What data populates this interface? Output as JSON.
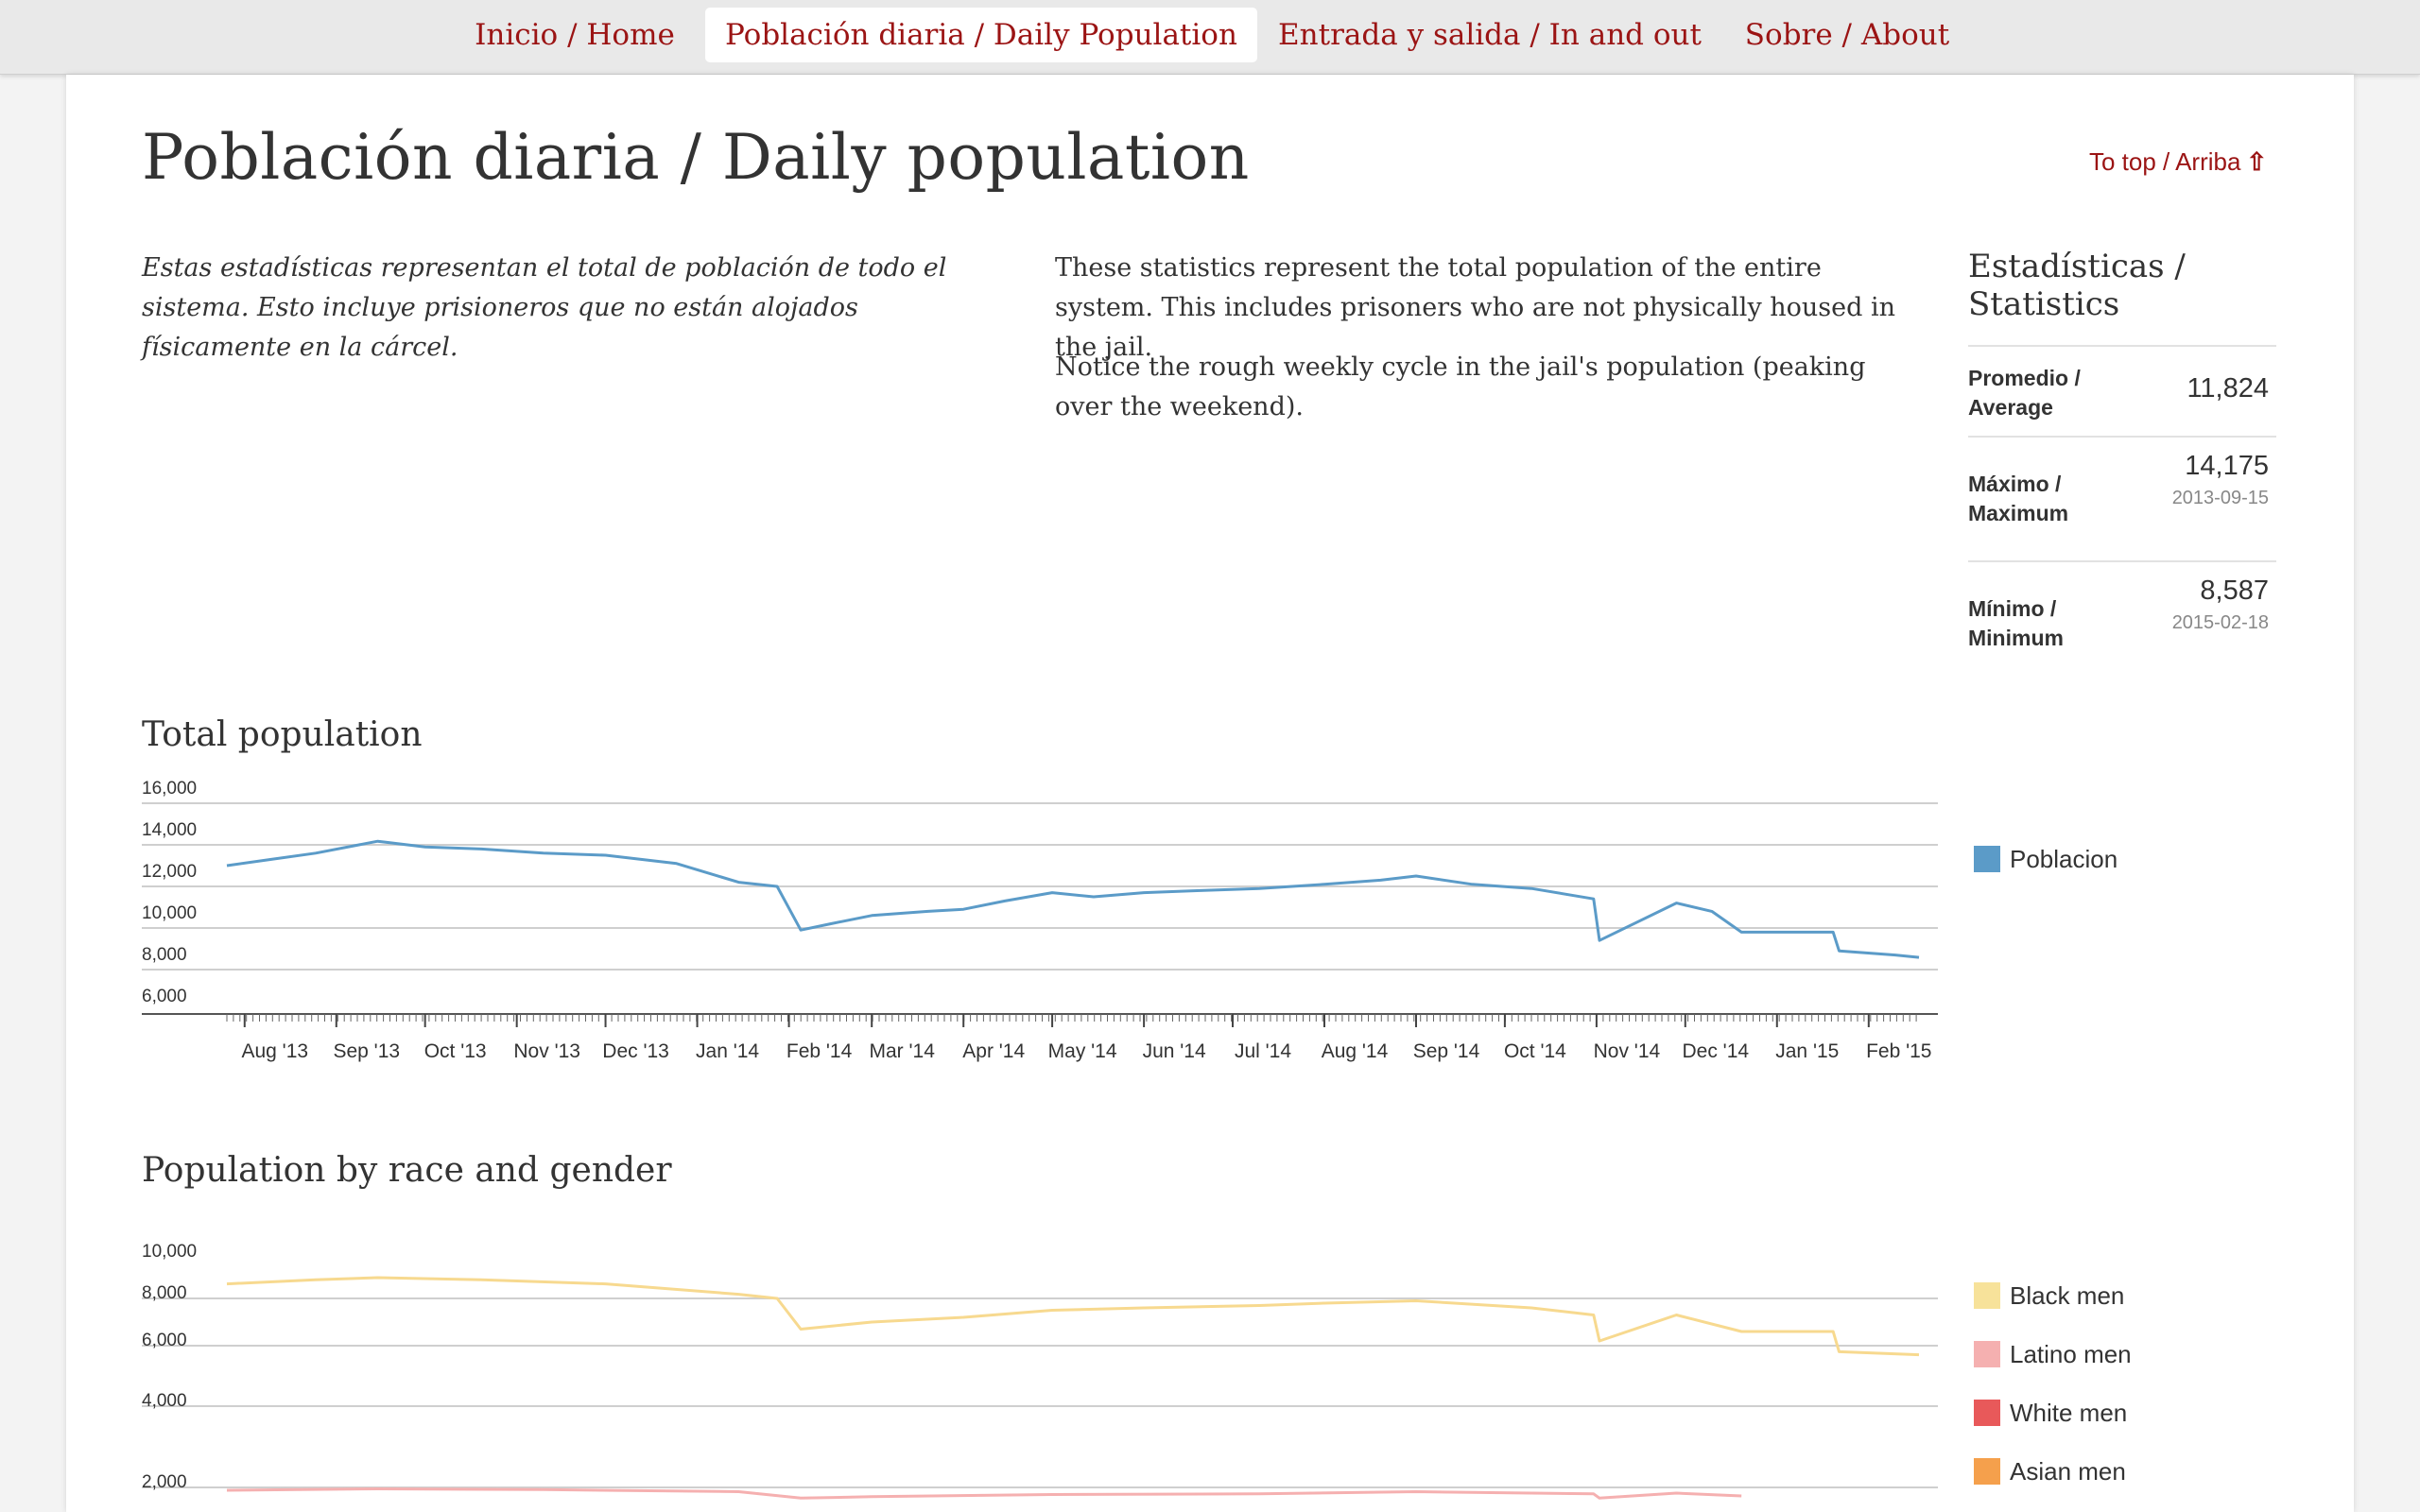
{
  "nav": {
    "items": [
      {
        "label": "Inicio / Home",
        "active": false
      },
      {
        "label": "Población diaria / Daily Population",
        "active": true
      },
      {
        "label": "Entrada y salida / In and out",
        "active": false
      },
      {
        "label": "Sobre / About",
        "active": false
      }
    ]
  },
  "page": {
    "title": "Población diaria / Daily population",
    "to_top": "To top / Arriba",
    "intro_es": "Estas estadísticas representan el total de población de todo el sistema. Esto incluye prisioneros que no están alojados físicamente en la cárcel.",
    "intro_en_1": "These statistics represent the total population of the entire system. This includes prisoners who are not physically housed in the jail.",
    "intro_en_2": "Notice the rough weekly cycle in the jail's population (peaking over the weekend)."
  },
  "stats": {
    "title": "Estadísticas / Statistics",
    "average": {
      "label": "Promedio / Average",
      "value": "11,824"
    },
    "maximum": {
      "label": "Máximo / Maximum",
      "value": "14,175",
      "date": "2013-09-15"
    },
    "minimum": {
      "label": "Mínimo / Minimum",
      "value": "8,587",
      "date": "2015-02-18"
    }
  },
  "sections": {
    "total_title": "Total population",
    "race_title": "Population by race and gender"
  },
  "colors": {
    "accent": "#9b1414",
    "poblacion": "#5b9bc8",
    "black_men": "#f7d98f",
    "latino_men": "#f5b0b0",
    "white_men": "#e8595a",
    "asian_men": "#f5a04c"
  },
  "chart_data": [
    {
      "type": "line",
      "title": "Total population",
      "x_labels": [
        "Aug '13",
        "Sep '13",
        "Oct '13",
        "Nov '13",
        "Dec '13",
        "Jan '14",
        "Feb '14",
        "Mar '14",
        "Apr '14",
        "May '14",
        "Jun '14",
        "Jul '14",
        "Aug '14",
        "Sep '14",
        "Oct '14",
        "Nov '14",
        "Dec '14",
        "Jan '15",
        "Feb '15"
      ],
      "y_ticks": [
        "16,000",
        "14,000",
        "12,000",
        "10,000",
        "8,000",
        "6,000"
      ],
      "ylim": [
        6000,
        16000
      ],
      "legend_position": "right",
      "series": [
        {
          "name": "Poblacion",
          "x": [
            "2013-07-26",
            "2013-08-10",
            "2013-08-25",
            "2013-09-15",
            "2013-10-01",
            "2013-10-20",
            "2013-11-10",
            "2013-12-01",
            "2013-12-25",
            "2014-01-15",
            "2014-01-28",
            "2014-02-05",
            "2014-02-15",
            "2014-03-01",
            "2014-03-20",
            "2014-04-01",
            "2014-04-15",
            "2014-05-01",
            "2014-05-15",
            "2014-06-01",
            "2014-06-20",
            "2014-07-10",
            "2014-08-01",
            "2014-08-20",
            "2014-09-01",
            "2014-09-20",
            "2014-10-10",
            "2014-10-31",
            "2014-11-02",
            "2014-11-28",
            "2014-12-10",
            "2014-12-20",
            "2015-01-20",
            "2015-01-22",
            "2015-02-10",
            "2015-02-18"
          ],
          "y": [
            13000,
            13300,
            13600,
            14175,
            13900,
            13800,
            13600,
            13500,
            13100,
            12200,
            12000,
            9900,
            10200,
            10600,
            10800,
            10900,
            11300,
            11700,
            11500,
            11700,
            11800,
            11900,
            12100,
            12300,
            12500,
            12100,
            11900,
            11400,
            9400,
            11200,
            10800,
            9800,
            9800,
            8900,
            8700,
            8587
          ]
        }
      ]
    },
    {
      "type": "line",
      "title": "Population by race and gender",
      "y_ticks": [
        "10,000",
        "8,000",
        "6,000",
        "4,000",
        "2,000"
      ],
      "ylim": [
        2000,
        10000
      ],
      "legend_position": "right",
      "series": [
        {
          "name": "Black men",
          "x": [
            "2013-07-26",
            "2013-08-25",
            "2013-09-15",
            "2013-10-20",
            "2013-12-01",
            "2014-01-15",
            "2014-01-28",
            "2014-02-05",
            "2014-03-01",
            "2014-04-01",
            "2014-05-01",
            "2014-06-01",
            "2014-07-10",
            "2014-08-01",
            "2014-09-01",
            "2014-10-10",
            "2014-10-31",
            "2014-11-02",
            "2014-11-28",
            "2014-12-20",
            "2015-01-20",
            "2015-01-22",
            "2015-02-18"
          ],
          "y": [
            8700,
            8900,
            9000,
            8900,
            8700,
            8200,
            8000,
            6700,
            7000,
            7200,
            7500,
            7600,
            7700,
            7800,
            7900,
            7600,
            7300,
            6200,
            7300,
            6600,
            6600,
            5800,
            5700
          ]
        },
        {
          "name": "Latino men",
          "x": [
            "2013-07-26",
            "2013-09-15",
            "2013-11-10",
            "2014-01-15",
            "2014-02-05",
            "2014-03-01",
            "2014-05-01",
            "2014-07-10",
            "2014-09-01",
            "2014-10-31",
            "2014-11-02",
            "2014-11-28",
            "2014-12-20"
          ],
          "y": [
            1800,
            1900,
            1850,
            1700,
            1250,
            1350,
            1500,
            1550,
            1700,
            1550,
            1250,
            1600,
            1400
          ]
        }
      ],
      "legend_extra": [
        "White men",
        "Asian men"
      ]
    }
  ]
}
